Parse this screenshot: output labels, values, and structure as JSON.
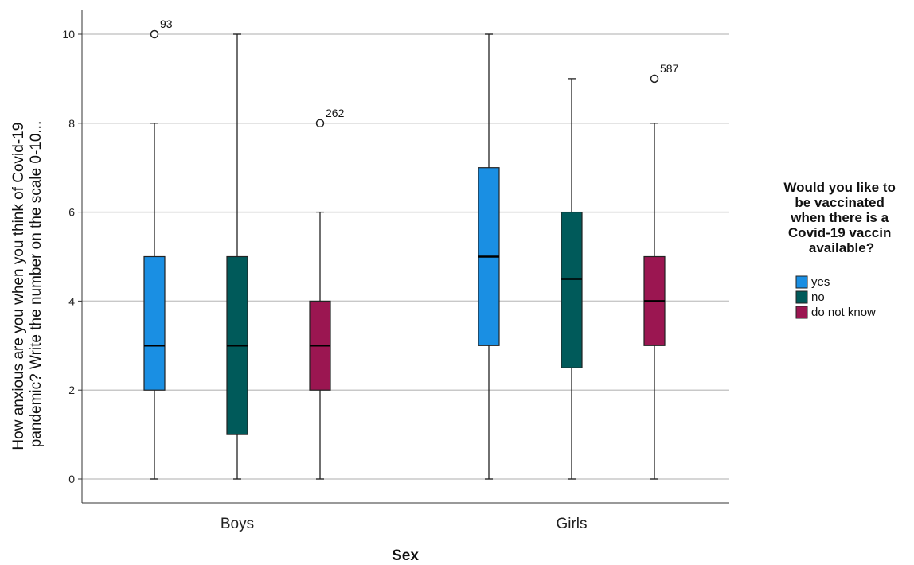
{
  "chart_data": {
    "type": "boxplot",
    "xlabel": "Sex",
    "ylabel_lines": [
      "How anxious are you when you think of Covid-19",
      "pandemic? Write the number on the scale 0-10..."
    ],
    "ylim": [
      -0.55,
      10.6
    ],
    "yticks": [
      0,
      2,
      4,
      6,
      8,
      10
    ],
    "grid": true,
    "categories": [
      "Boys",
      "Girls"
    ],
    "legend": {
      "title_lines": [
        "Would you like to",
        "be vaccinated",
        "when there is a",
        "Covid-19 vaccin",
        "available?"
      ],
      "placement": "right"
    },
    "series": [
      {
        "name": "yes",
        "color": "#1a8fe3",
        "boxes": [
          {
            "min": 0,
            "q1": 2,
            "median": 3,
            "q3": 5,
            "max": 8,
            "outliers": [
              {
                "value": 10,
                "label": "93"
              }
            ]
          },
          {
            "min": 0,
            "q1": 3,
            "median": 5,
            "q3": 7,
            "max": 10,
            "outliers": []
          }
        ]
      },
      {
        "name": "no",
        "color": "#005a5a",
        "boxes": [
          {
            "min": 0,
            "q1": 1,
            "median": 3,
            "q3": 5,
            "max": 10,
            "outliers": []
          },
          {
            "min": 0,
            "q1": 2.5,
            "median": 4.5,
            "q3": 6,
            "max": 9,
            "outliers": []
          }
        ]
      },
      {
        "name": "do not know",
        "color": "#9b1651",
        "boxes": [
          {
            "min": 0,
            "q1": 2,
            "median": 3,
            "q3": 4,
            "max": 6,
            "outliers": [
              {
                "value": 8,
                "label": "262"
              }
            ]
          },
          {
            "min": 0,
            "q1": 3,
            "median": 4,
            "q3": 5,
            "max": 8,
            "outliers": [
              {
                "value": 9,
                "label": "587"
              }
            ]
          }
        ]
      }
    ]
  }
}
